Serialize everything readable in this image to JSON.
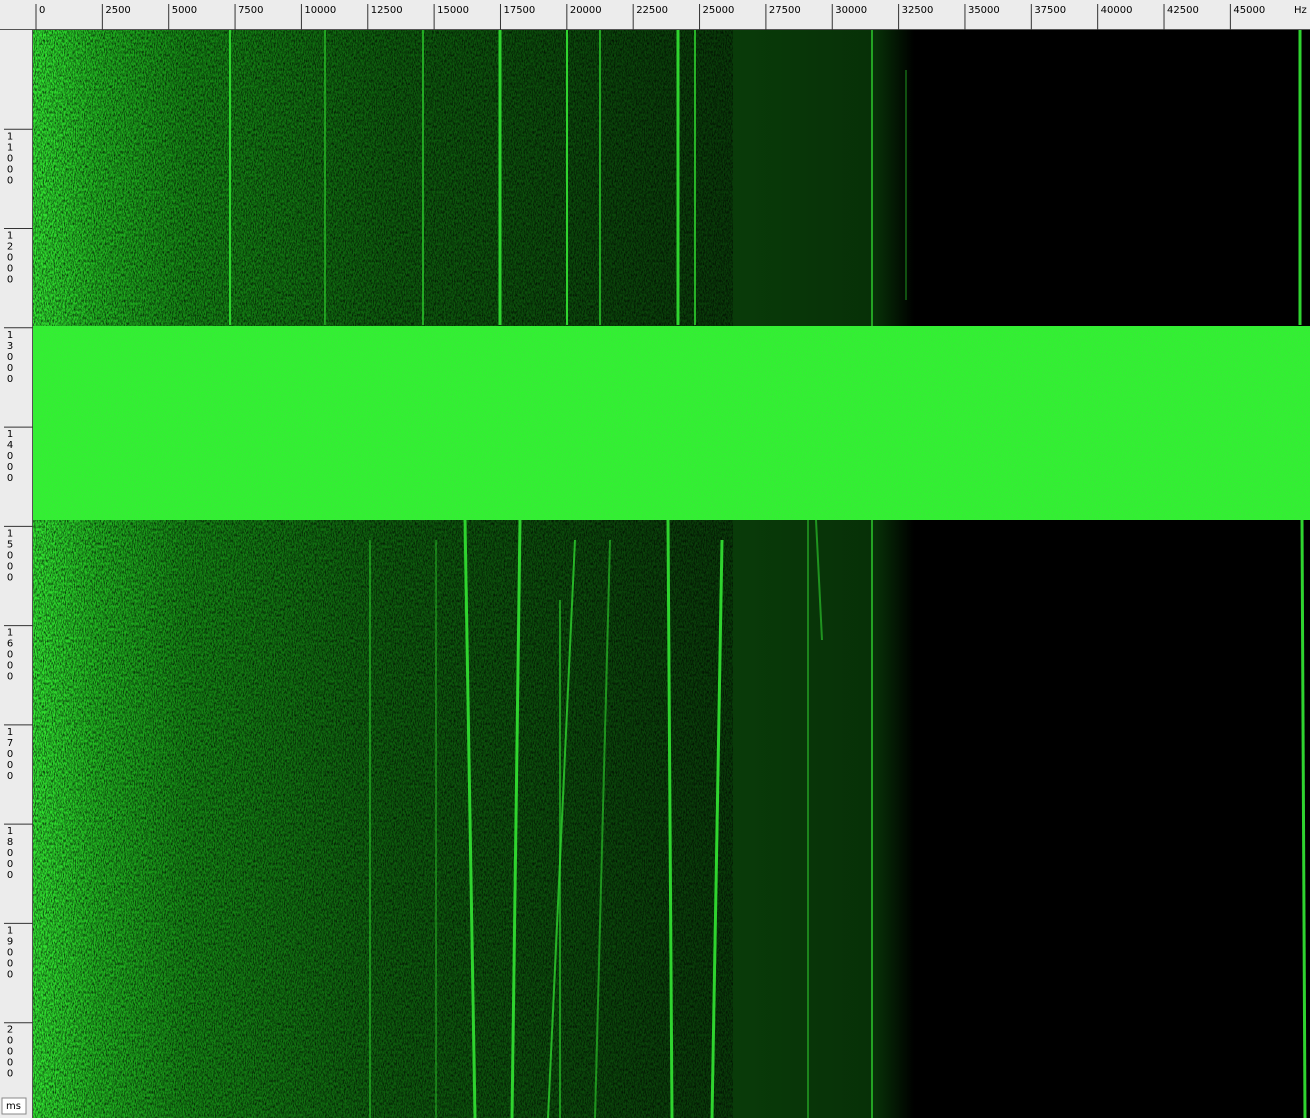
{
  "spectrogram": {
    "x_axis": {
      "unit": "Hz",
      "xlim": [
        0,
        48000
      ],
      "xticks": [
        0,
        2500,
        5000,
        7500,
        10000,
        12500,
        15000,
        17500,
        20000,
        22500,
        25000,
        27500,
        30000,
        32500,
        35000,
        37500,
        40000,
        42500,
        45000
      ]
    },
    "y_axis": {
      "unit": "ms",
      "ylim": [
        10000,
        20960
      ],
      "yticks": [
        11000,
        12000,
        13000,
        14000,
        15000,
        16000,
        17000,
        18000,
        19000,
        20000
      ]
    }
  }
}
